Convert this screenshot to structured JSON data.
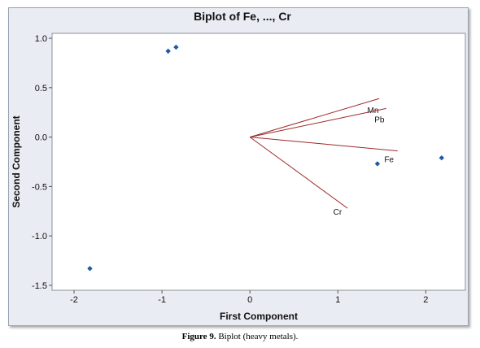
{
  "chart_data": {
    "type": "scatter",
    "title": "Biplot of Fe, ..., Cr",
    "xlabel": "First Component",
    "ylabel": "Second Component",
    "xlim": [
      -2.25,
      2.45
    ],
    "ylim": [
      -1.55,
      1.05
    ],
    "xticks": [
      -2,
      -1,
      0,
      1,
      2
    ],
    "xtick_labels": [
      "-2",
      "-1",
      "0",
      "1",
      "2"
    ],
    "yticks": [
      1.0,
      0.5,
      0.0,
      -0.5,
      -1.0,
      -1.5
    ],
    "ytick_labels": [
      "1.0",
      "0.5",
      "0.0",
      "-0.5",
      "-1.0",
      "-1.5"
    ],
    "grid": false,
    "points": [
      {
        "x": -0.93,
        "y": 0.87
      },
      {
        "x": -0.84,
        "y": 0.91
      },
      {
        "x": -1.82,
        "y": -1.33
      },
      {
        "x": 1.45,
        "y": -0.27
      },
      {
        "x": 2.18,
        "y": -0.21
      }
    ],
    "point_color": "#1f5aa6",
    "vectors": [
      {
        "label": "Mn",
        "x": 1.47,
        "y": 0.39
      },
      {
        "label": "Pb",
        "x": 1.55,
        "y": 0.29
      },
      {
        "label": "Fe",
        "x": 1.68,
        "y": -0.14
      },
      {
        "label": "Cr",
        "x": 1.11,
        "y": -0.72
      }
    ],
    "vector_color": "#9e2a2b"
  },
  "caption": {
    "figure_label": "Figure 9.",
    "text": " Biplot (heavy metals)."
  }
}
